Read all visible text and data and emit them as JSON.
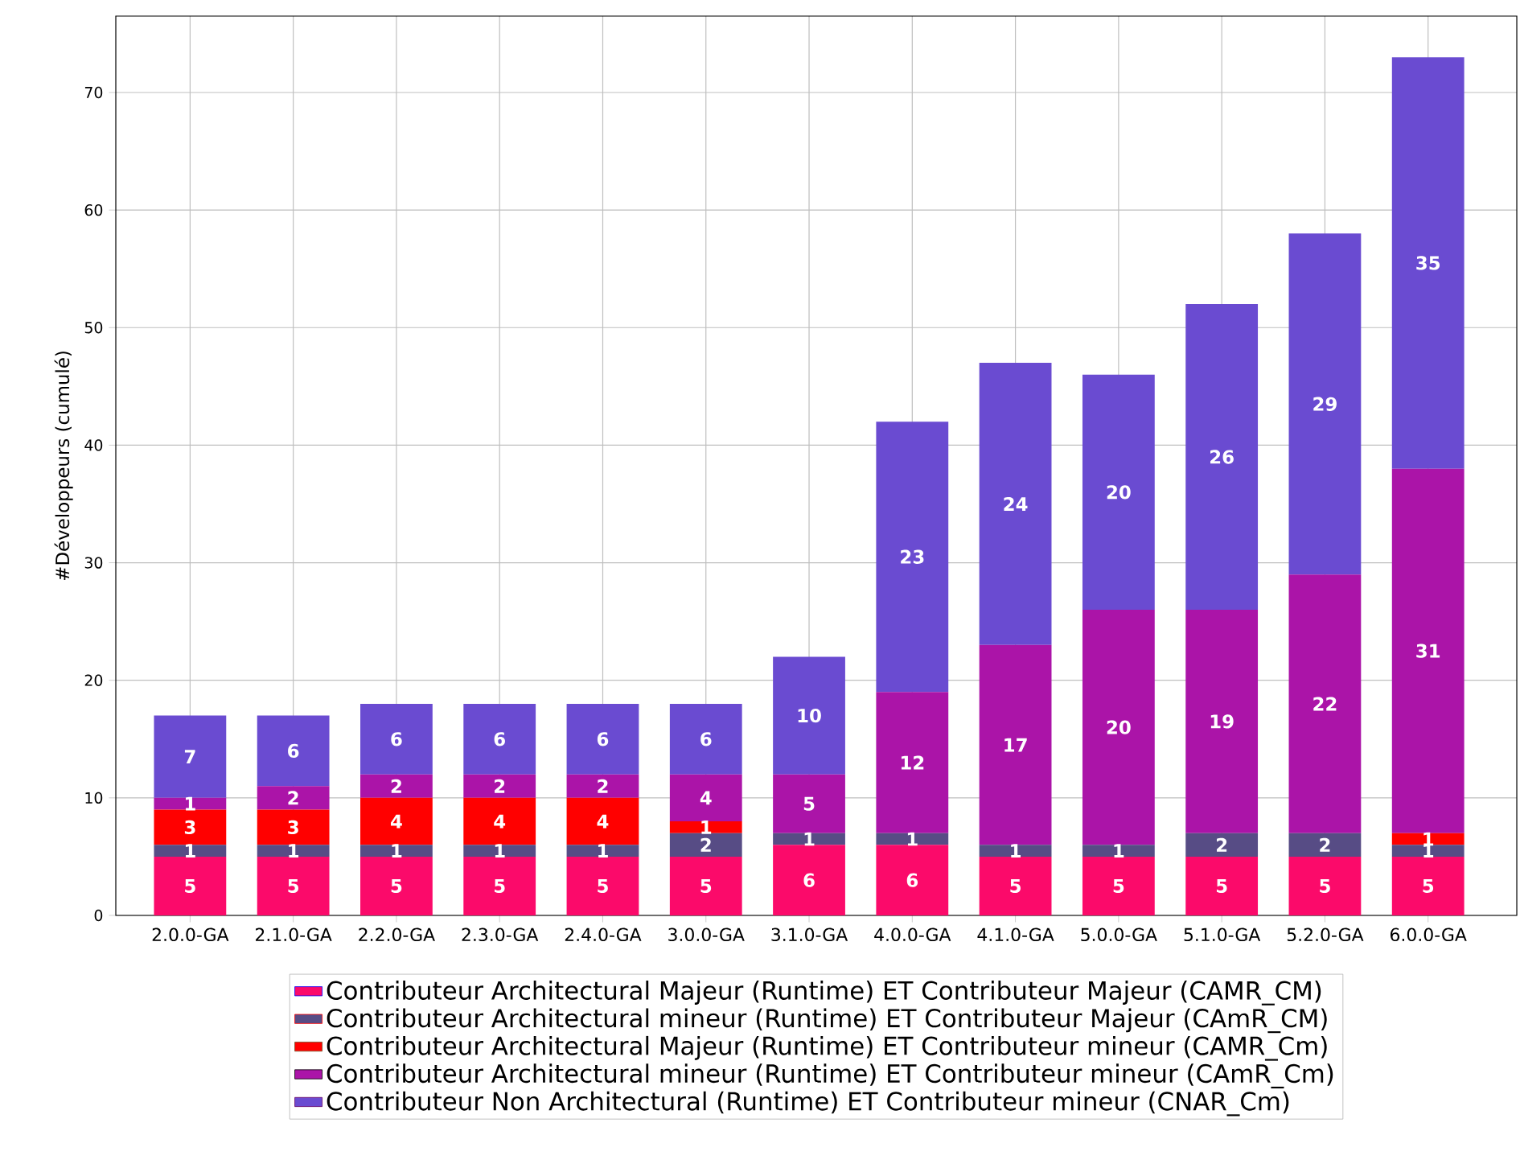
{
  "chart_data": {
    "type": "bar",
    "stacked": true,
    "ylabel": "#Développeurs (cumulé)",
    "categories": [
      "2.0.0-GA",
      "2.1.0-GA",
      "2.2.0-GA",
      "2.3.0-GA",
      "2.4.0-GA",
      "3.0.0-GA",
      "3.1.0-GA",
      "4.0.0-GA",
      "4.1.0-GA",
      "5.0.0-GA",
      "5.1.0-GA",
      "5.2.0-GA",
      "6.0.0-GA"
    ],
    "series": [
      {
        "name": "Contributeur Architectural Majeur (Runtime) ET Contributeur Majeur (CAMR_CM)",
        "color": "#fb0a6a",
        "values": [
          5,
          5,
          5,
          5,
          5,
          5,
          6,
          6,
          5,
          5,
          5,
          5,
          5
        ],
        "value_labels": [
          "5",
          "5",
          "5",
          "5",
          "5",
          "5",
          "6",
          "6",
          "5",
          "5",
          "5",
          "5",
          "5"
        ]
      },
      {
        "name": "Contributeur Architectural mineur (Runtime) ET Contributeur Majeur (CAmR_CM)",
        "color": "#574c85",
        "values": [
          1,
          1,
          1,
          1,
          1,
          2,
          1,
          1,
          1,
          1,
          2,
          2,
          1
        ],
        "value_labels": [
          "1",
          "1",
          "1",
          "1",
          "1",
          "2",
          "1",
          "1",
          "1",
          "1",
          "2",
          "2",
          "1"
        ]
      },
      {
        "name": "Contributeur Architectural Majeur (Runtime) ET Contributeur mineur (CAMR_Cm)",
        "color": "#ff0000",
        "values": [
          3,
          3,
          4,
          4,
          4,
          1,
          0,
          0,
          0,
          0,
          0,
          0,
          1
        ],
        "value_labels": [
          "3",
          "3",
          "4",
          "4",
          "4",
          "1",
          null,
          null,
          null,
          null,
          null,
          null,
          "1"
        ]
      },
      {
        "name": "Contributeur Architectural mineur (Runtime) ET Contributeur mineur (CAmR_Cm)",
        "color": "#ab14a8",
        "values": [
          1,
          2,
          2,
          2,
          2,
          4,
          5,
          12,
          17,
          20,
          19,
          22,
          31
        ],
        "value_labels": [
          "1",
          "2",
          "2",
          "2",
          "2",
          "4",
          "5",
          "12",
          "17",
          "20",
          "19",
          "22",
          "31"
        ]
      },
      {
        "name": "Contributeur Non Architectural (Runtime) ET Contributeur mineur (CNAR_Cm)",
        "color": "#6a4bd1",
        "values": [
          7,
          6,
          6,
          6,
          6,
          6,
          10,
          23,
          24,
          20,
          26,
          29,
          35
        ],
        "value_labels": [
          "7",
          "6",
          "6",
          "6",
          "6",
          "6",
          "10",
          "23",
          "24",
          "20",
          "26",
          "29",
          "35"
        ]
      }
    ],
    "ylim": [
      0,
      76.5
    ],
    "yticks": [
      0,
      10,
      20,
      30,
      40,
      50,
      60,
      70
    ],
    "grid": true,
    "legend": "bottom"
  }
}
